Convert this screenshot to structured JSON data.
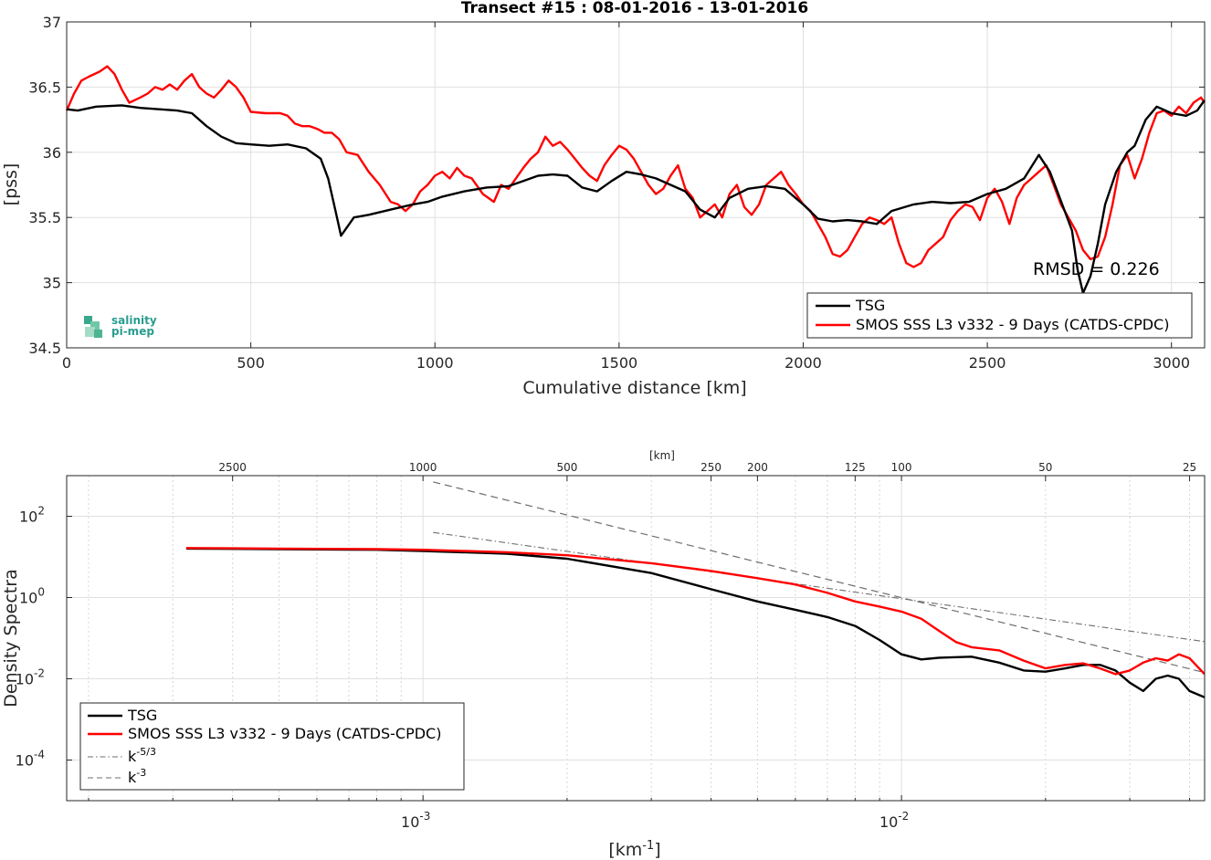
{
  "chart_data": [
    {
      "type": "line",
      "title": "Transect #15 : 08-01-2016 - 13-01-2016",
      "xlabel": "Cumulative distance [km]",
      "ylabel": "[pss]",
      "xlim": [
        0,
        3090
      ],
      "ylim": [
        34.5,
        37
      ],
      "xticks": [
        0,
        500,
        1000,
        1500,
        2000,
        2500,
        3000
      ],
      "yticks": [
        34.5,
        35,
        35.5,
        36,
        36.5,
        37
      ],
      "grid": true,
      "legend_placement": "bottom-right",
      "annotation": "RMSD = 0.226",
      "logo": {
        "line1": "salinity",
        "line2": "pi-mep"
      },
      "series": [
        {
          "name": "TSG",
          "color": "#000000",
          "x": [
            0,
            30,
            80,
            150,
            200,
            300,
            340,
            380,
            420,
            460,
            500,
            550,
            600,
            650,
            690,
            710,
            730,
            745,
            760,
            780,
            820,
            880,
            940,
            980,
            1020,
            1080,
            1140,
            1200,
            1240,
            1280,
            1320,
            1360,
            1400,
            1440,
            1480,
            1520,
            1560,
            1600,
            1640,
            1680,
            1720,
            1760,
            1800,
            1850,
            1900,
            1950,
            2000,
            2040,
            2080,
            2120,
            2160,
            2200,
            2240,
            2300,
            2350,
            2400,
            2450,
            2500,
            2550,
            2600,
            2640,
            2670,
            2690,
            2710,
            2730,
            2745,
            2760,
            2780,
            2800,
            2820,
            2850,
            2880,
            2900,
            2930,
            2960,
            3000,
            3040,
            3070,
            3090
          ],
          "y": [
            36.33,
            36.32,
            36.35,
            36.36,
            36.34,
            36.32,
            36.3,
            36.2,
            36.12,
            36.07,
            36.06,
            36.05,
            36.06,
            36.03,
            35.95,
            35.8,
            35.55,
            35.36,
            35.42,
            35.5,
            35.52,
            35.56,
            35.6,
            35.62,
            35.66,
            35.7,
            35.73,
            35.74,
            35.78,
            35.82,
            35.83,
            35.82,
            35.73,
            35.7,
            35.78,
            35.85,
            35.83,
            35.8,
            35.75,
            35.7,
            35.56,
            35.5,
            35.65,
            35.72,
            35.74,
            35.72,
            35.6,
            35.49,
            35.47,
            35.48,
            35.47,
            35.45,
            35.55,
            35.6,
            35.62,
            35.61,
            35.62,
            35.68,
            35.72,
            35.8,
            35.98,
            35.85,
            35.7,
            35.55,
            35.4,
            35.1,
            34.92,
            35.05,
            35.3,
            35.6,
            35.85,
            36.0,
            36.05,
            36.25,
            36.35,
            36.3,
            36.28,
            36.32,
            36.4
          ]
        },
        {
          "name": "SMOS SSS L3 v332 - 9 Days (CATDS-CPDC)",
          "color": "#ff0000",
          "x": [
            0,
            20,
            40,
            60,
            90,
            110,
            130,
            150,
            170,
            200,
            220,
            240,
            260,
            280,
            300,
            320,
            340,
            360,
            380,
            400,
            420,
            440,
            460,
            480,
            500,
            540,
            580,
            600,
            620,
            640,
            660,
            680,
            700,
            720,
            740,
            760,
            790,
            820,
            850,
            880,
            900,
            920,
            940,
            960,
            980,
            1000,
            1020,
            1040,
            1060,
            1080,
            1100,
            1130,
            1160,
            1180,
            1200,
            1220,
            1240,
            1260,
            1280,
            1300,
            1320,
            1340,
            1360,
            1380,
            1400,
            1420,
            1440,
            1460,
            1480,
            1500,
            1520,
            1540,
            1560,
            1580,
            1600,
            1620,
            1640,
            1660,
            1680,
            1700,
            1720,
            1740,
            1760,
            1780,
            1800,
            1820,
            1840,
            1860,
            1880,
            1900,
            1920,
            1940,
            1960,
            1980,
            2000,
            2020,
            2040,
            2060,
            2080,
            2100,
            2120,
            2140,
            2160,
            2180,
            2200,
            2220,
            2240,
            2260,
            2280,
            2300,
            2320,
            2340,
            2360,
            2380,
            2400,
            2420,
            2440,
            2460,
            2480,
            2500,
            2520,
            2540,
            2560,
            2580,
            2600,
            2620,
            2640,
            2660,
            2680,
            2700,
            2720,
            2740,
            2760,
            2780,
            2800,
            2820,
            2840,
            2860,
            2880,
            2900,
            2920,
            2940,
            2960,
            2980,
            3000,
            3020,
            3040,
            3060,
            3080,
            3090
          ],
          "y": [
            36.32,
            36.45,
            36.55,
            36.58,
            36.62,
            36.66,
            36.6,
            36.48,
            36.38,
            36.42,
            36.45,
            36.5,
            36.48,
            36.52,
            36.48,
            36.55,
            36.6,
            36.5,
            36.45,
            36.42,
            36.48,
            36.55,
            36.5,
            36.42,
            36.31,
            36.3,
            36.3,
            36.28,
            36.22,
            36.2,
            36.2,
            36.18,
            36.15,
            36.15,
            36.1,
            36.0,
            35.98,
            35.85,
            35.75,
            35.62,
            35.6,
            35.55,
            35.6,
            35.7,
            35.75,
            35.82,
            35.85,
            35.8,
            35.88,
            35.82,
            35.8,
            35.68,
            35.62,
            35.75,
            35.72,
            35.8,
            35.88,
            35.95,
            36.0,
            36.12,
            36.05,
            36.08,
            36.02,
            35.95,
            35.88,
            35.82,
            35.78,
            35.9,
            35.98,
            36.05,
            36.02,
            35.95,
            35.85,
            35.75,
            35.68,
            35.72,
            35.82,
            35.9,
            35.72,
            35.65,
            35.5,
            35.55,
            35.6,
            35.5,
            35.68,
            35.75,
            35.58,
            35.52,
            35.6,
            35.75,
            35.8,
            35.85,
            35.75,
            35.68,
            35.6,
            35.55,
            35.45,
            35.35,
            35.22,
            35.2,
            35.25,
            35.35,
            35.45,
            35.5,
            35.48,
            35.45,
            35.5,
            35.3,
            35.15,
            35.12,
            35.15,
            35.25,
            35.3,
            35.35,
            35.48,
            35.55,
            35.6,
            35.58,
            35.48,
            35.65,
            35.72,
            35.62,
            35.45,
            35.65,
            35.75,
            35.8,
            35.85,
            35.9,
            35.75,
            35.6,
            35.5,
            35.4,
            35.25,
            35.18,
            35.2,
            35.35,
            35.6,
            35.9,
            35.98,
            35.8,
            35.95,
            36.15,
            36.3,
            36.32,
            36.28,
            36.35,
            36.3,
            36.38,
            36.42,
            36.38
          ]
        }
      ]
    },
    {
      "type": "line",
      "xlabel": "[km⁻¹]",
      "ylabel": "Density Spectra",
      "top_axis_label": "[km]",
      "x_scale": "log",
      "y_scale": "log",
      "xlim": [
        0.00018,
        0.043
      ],
      "ylim": [
        1e-05,
        1000
      ],
      "xticks": [
        0.001,
        0.01
      ],
      "xtick_labels": [
        "10",
        "10"
      ],
      "xtick_exponents": [
        "-3",
        "-2"
      ],
      "yticks": [
        0.0001,
        0.01,
        1,
        100
      ],
      "ytick_labels": [
        "10",
        "10",
        "10",
        "10"
      ],
      "ytick_exponents": [
        "-4",
        "-2",
        "0",
        "2"
      ],
      "top_ticks_km": [
        2500,
        1000,
        500,
        250,
        200,
        125,
        100,
        50,
        25
      ],
      "top_tick_labels": [
        "2500",
        "1000",
        "500",
        "250",
        "200",
        "125",
        "100",
        "50",
        "25"
      ],
      "grid": true,
      "legend_placement": "bottom-left",
      "legend_entries": [
        {
          "label": "TSG",
          "exp": ""
        },
        {
          "label": "SMOS SSS L3 v332 - 9 Days (CATDS-CPDC)",
          "exp": ""
        },
        {
          "label": "k",
          "exp": "-5/3"
        },
        {
          "label": "k",
          "exp": "-3"
        }
      ],
      "series": [
        {
          "name": "TSG",
          "color": "#000000",
          "x": [
            0.00032,
            0.0005,
            0.0008,
            0.001,
            0.0015,
            0.002,
            0.003,
            0.004,
            0.005,
            0.006,
            0.007,
            0.008,
            0.009,
            0.01,
            0.011,
            0.012,
            0.014,
            0.016,
            0.018,
            0.02,
            0.022,
            0.024,
            0.026,
            0.028,
            0.03,
            0.032,
            0.034,
            0.036,
            0.038,
            0.04,
            0.043
          ],
          "y": [
            16,
            15.5,
            15,
            14,
            12,
            9,
            4,
            1.6,
            0.8,
            0.5,
            0.33,
            0.2,
            0.09,
            0.04,
            0.03,
            0.033,
            0.035,
            0.025,
            0.016,
            0.015,
            0.018,
            0.022,
            0.022,
            0.016,
            0.008,
            0.005,
            0.01,
            0.012,
            0.01,
            0.005,
            0.0035
          ]
        },
        {
          "name": "SMOS SSS L3 v332 - 9 Days (CATDS-CPDC)",
          "color": "#ff0000",
          "x": [
            0.00032,
            0.0005,
            0.0008,
            0.001,
            0.0015,
            0.002,
            0.003,
            0.004,
            0.005,
            0.006,
            0.007,
            0.008,
            0.009,
            0.01,
            0.011,
            0.012,
            0.013,
            0.014,
            0.016,
            0.018,
            0.02,
            0.022,
            0.024,
            0.026,
            0.028,
            0.03,
            0.032,
            0.034,
            0.036,
            0.038,
            0.04,
            0.043
          ],
          "y": [
            16.5,
            16,
            15.5,
            15,
            13,
            11,
            7,
            4.5,
            3,
            2.1,
            1.3,
            0.8,
            0.6,
            0.45,
            0.3,
            0.15,
            0.08,
            0.06,
            0.05,
            0.028,
            0.018,
            0.022,
            0.024,
            0.018,
            0.013,
            0.016,
            0.025,
            0.032,
            0.028,
            0.04,
            0.032,
            0.013
          ]
        },
        {
          "name": "k",
          "exp": "-5/3",
          "color": "#6e6e6e",
          "dash": "dashdot",
          "x": [
            0.00105,
            0.043
          ],
          "y": [
            40,
            0.082
          ]
        },
        {
          "name": "k",
          "exp": "-3",
          "color": "#6e6e6e",
          "dash": "dash",
          "x": [
            0.00105,
            0.043
          ],
          "y": [
            700,
            0.0142
          ]
        }
      ]
    }
  ]
}
